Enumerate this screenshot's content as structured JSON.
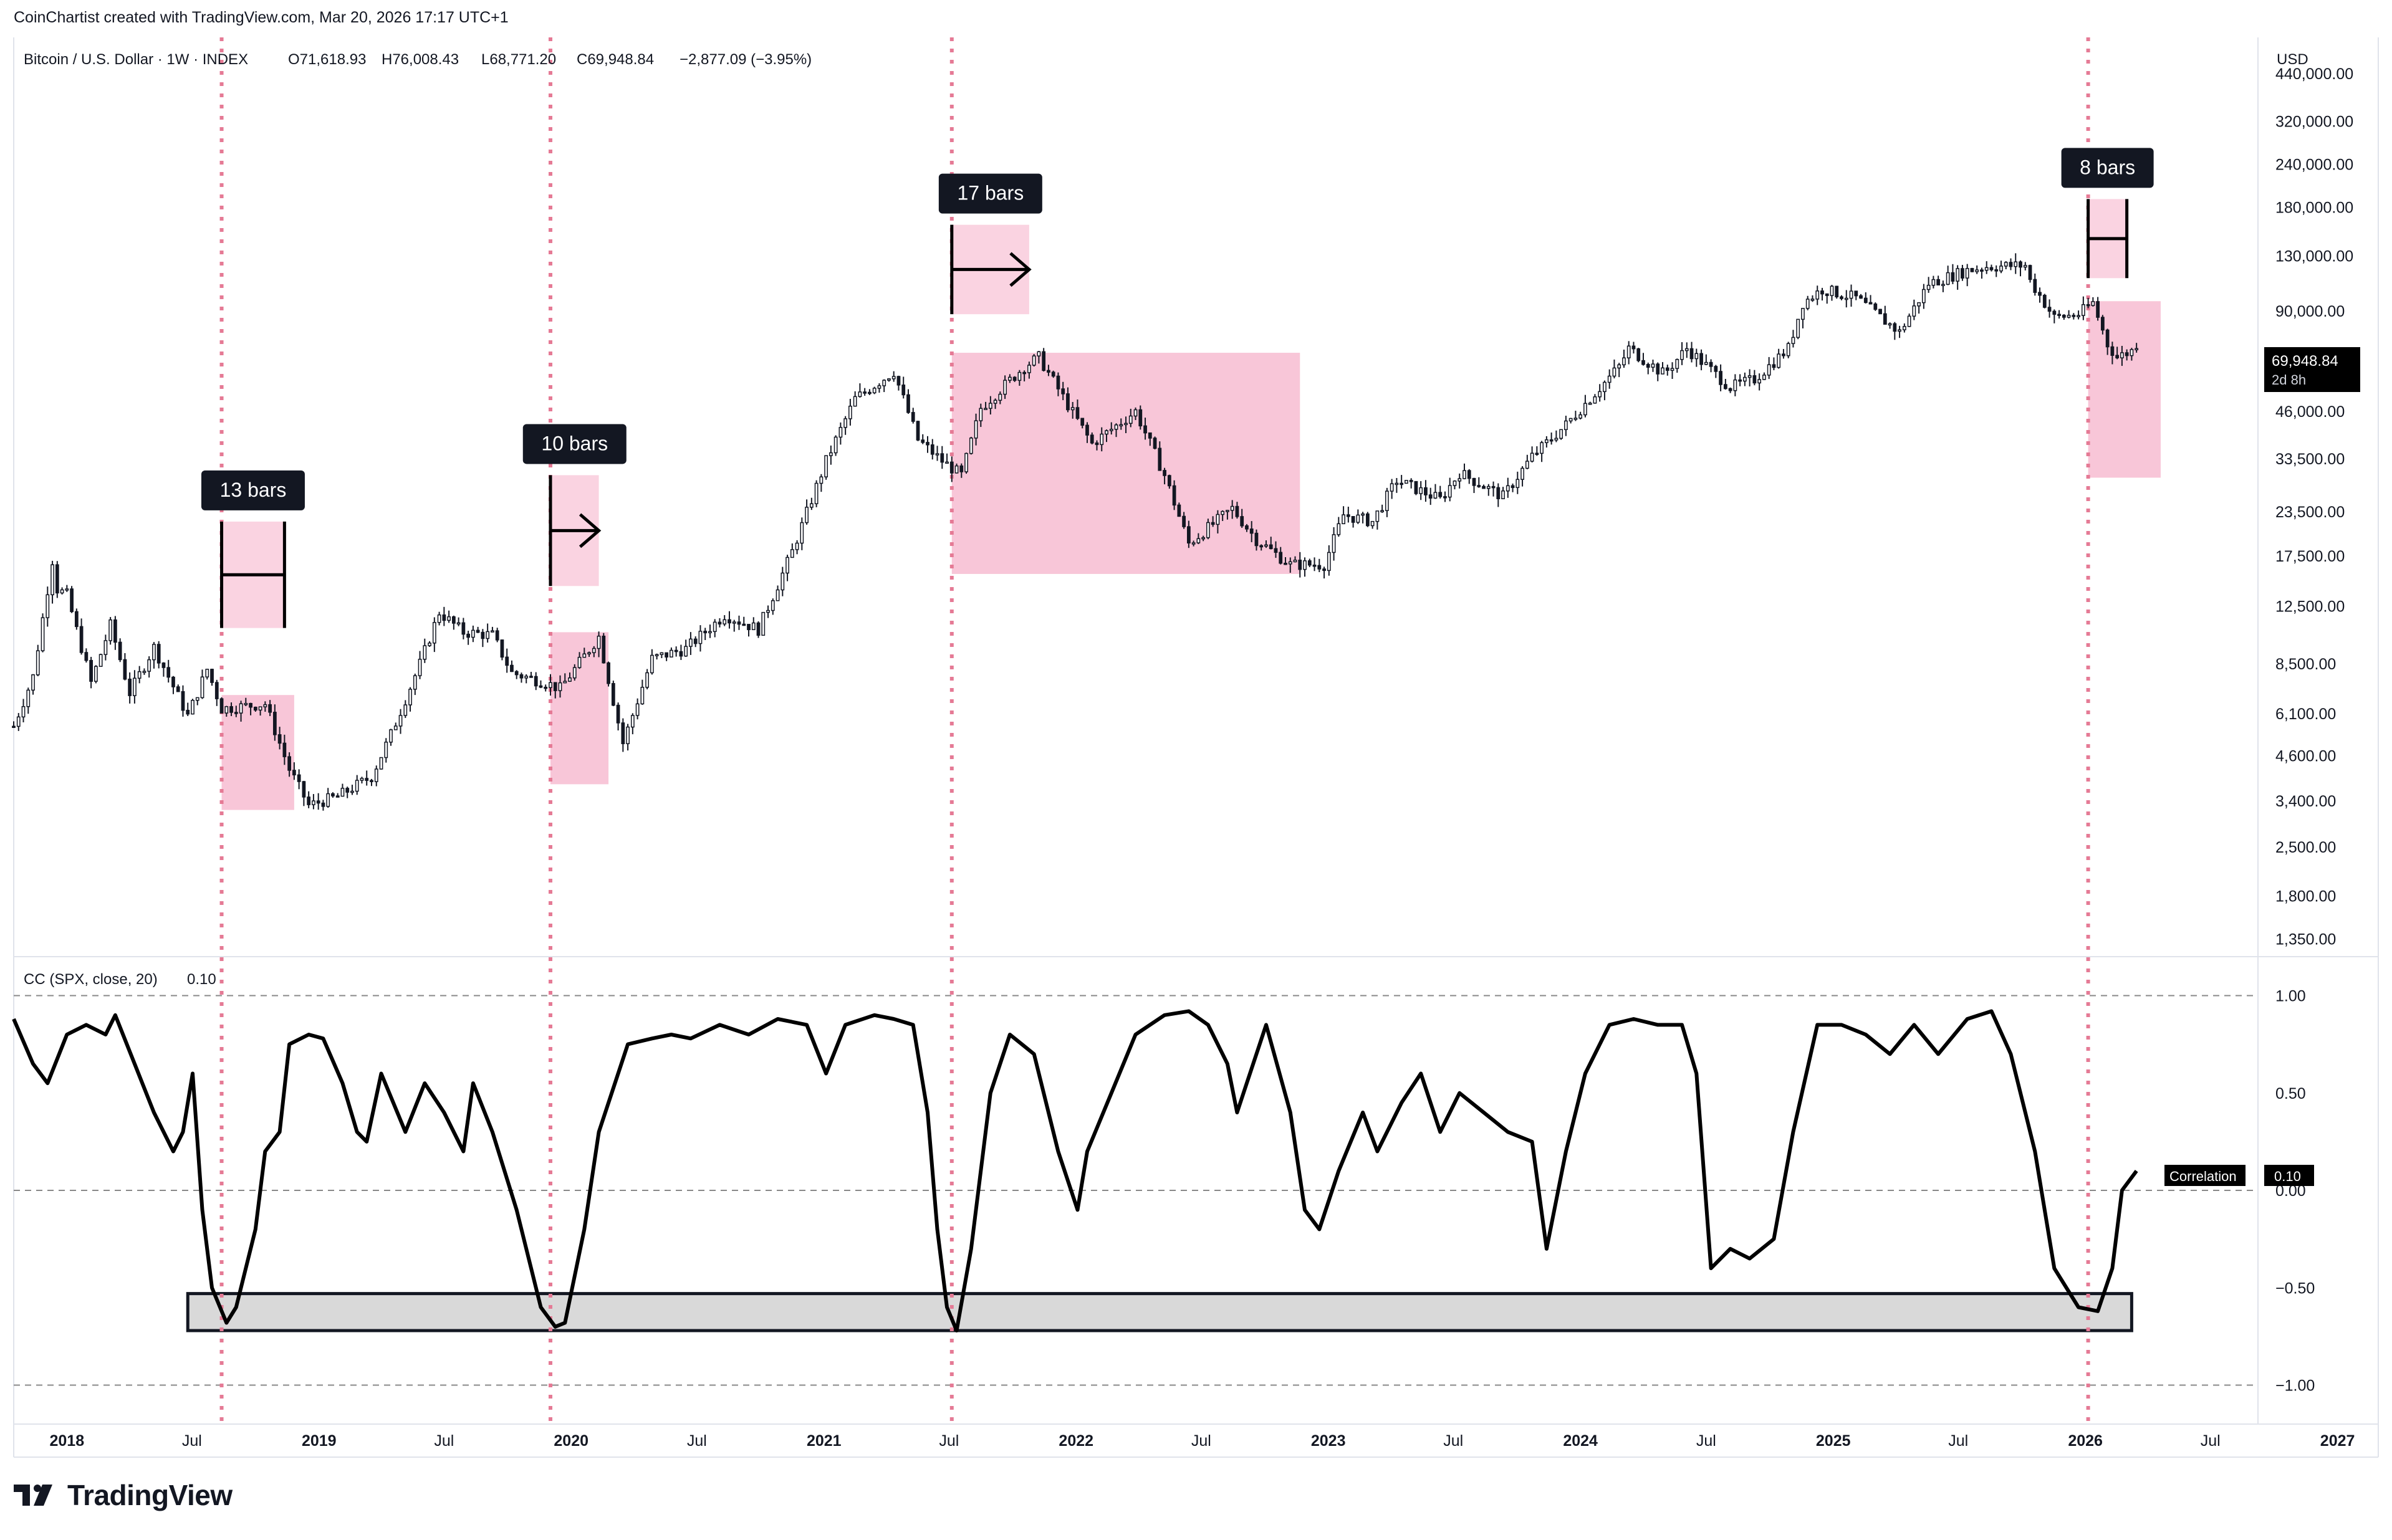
{
  "header": {
    "credit": "CoinChartist created with TradingView.com, Mar 20, 2026 17:17 UTC+1",
    "symbol": "Bitcoin / U.S. Dollar · 1W · INDEX",
    "ohlc": {
      "o": "O71,618.93",
      "h": "H76,008.43",
      "l": "L68,771.20",
      "c": "C69,948.84",
      "chg": "−2,877.09 (−3.95%)"
    }
  },
  "branding": {
    "name": "TradingView",
    "logo_icon": "tradingview-logo-icon"
  },
  "colors": {
    "accent_pink": "#f8c6d8",
    "marker_line": "#e57a95",
    "candle": "#131722",
    "price_badge": "#000000",
    "zone_gray": "#d9d9d9"
  },
  "chart_data": [
    {
      "type": "candlestick",
      "title": "Bitcoin / U.S. Dollar · 1W · INDEX",
      "currency_label": "USD",
      "y_scale": "log",
      "ylim": [
        1200,
        560000
      ],
      "y_ticks": [
        "440,000.00",
        "320,000.00",
        "240,000.00",
        "180,000.00",
        "130,000.00",
        "90,000.00",
        "46,000.00",
        "33,500.00",
        "23,500.00",
        "17,500.00",
        "12,500.00",
        "8,500.00",
        "6,100.00",
        "4,600.00",
        "3,400.00",
        "2,500.00",
        "1,800.00",
        "1,350.00"
      ],
      "x_range": [
        "2017-10-16",
        "2027-03-01"
      ],
      "x_ticks": [
        {
          "label": "2018",
          "date": "2018-01-01",
          "bold": true
        },
        {
          "label": "Jul",
          "date": "2018-07-01",
          "bold": false
        },
        {
          "label": "2019",
          "date": "2019-01-01",
          "bold": true
        },
        {
          "label": "Jul",
          "date": "2019-07-01",
          "bold": false
        },
        {
          "label": "2020",
          "date": "2020-01-01",
          "bold": true
        },
        {
          "label": "Jul",
          "date": "2020-07-01",
          "bold": false
        },
        {
          "label": "2021",
          "date": "2021-01-01",
          "bold": true
        },
        {
          "label": "Jul",
          "date": "2021-07-01",
          "bold": false
        },
        {
          "label": "2022",
          "date": "2022-01-01",
          "bold": true
        },
        {
          "label": "Jul",
          "date": "2022-07-01",
          "bold": false
        },
        {
          "label": "2023",
          "date": "2023-01-01",
          "bold": true
        },
        {
          "label": "Jul",
          "date": "2023-07-01",
          "bold": false
        },
        {
          "label": "2024",
          "date": "2024-01-01",
          "bold": true
        },
        {
          "label": "Jul",
          "date": "2024-07-01",
          "bold": false
        },
        {
          "label": "2025",
          "date": "2025-01-01",
          "bold": true
        },
        {
          "label": "Jul",
          "date": "2025-07-01",
          "bold": false
        },
        {
          "label": "2026",
          "date": "2026-01-01",
          "bold": true
        },
        {
          "label": "Jul",
          "date": "2026-07-01",
          "bold": false
        },
        {
          "label": "2027",
          "date": "2027-01-01",
          "bold": true
        }
      ],
      "price_path": [
        [
          "2017-10-16",
          5600
        ],
        [
          "2017-11-13",
          7800
        ],
        [
          "2017-12-11",
          17000
        ],
        [
          "2017-12-18",
          14000
        ],
        [
          "2018-01-01",
          13500
        ],
        [
          "2018-02-05",
          7500
        ],
        [
          "2018-03-05",
          11000
        ],
        [
          "2018-04-02",
          7000
        ],
        [
          "2018-05-07",
          9500
        ],
        [
          "2018-06-25",
          6000
        ],
        [
          "2018-07-23",
          8200
        ],
        [
          "2018-08-13",
          6300
        ],
        [
          "2018-10-15",
          6500
        ],
        [
          "2018-11-19",
          4200
        ],
        [
          "2018-12-17",
          3300
        ],
        [
          "2019-01-28",
          3500
        ],
        [
          "2019-03-18",
          4000
        ],
        [
          "2019-04-15",
          5300
        ],
        [
          "2019-05-27",
          8500
        ],
        [
          "2019-06-24",
          12000
        ],
        [
          "2019-07-29",
          10500
        ],
        [
          "2019-09-09",
          10300
        ],
        [
          "2019-10-07",
          8000
        ],
        [
          "2019-11-25",
          7500
        ],
        [
          "2019-12-16",
          7200
        ],
        [
          "2020-02-10",
          10200
        ],
        [
          "2020-03-16",
          5000
        ],
        [
          "2020-04-27",
          8800
        ],
        [
          "2020-06-15",
          9400
        ],
        [
          "2020-08-10",
          11800
        ],
        [
          "2020-09-28",
          10700
        ],
        [
          "2020-11-16",
          18000
        ],
        [
          "2021-01-04",
          33000
        ],
        [
          "2021-02-15",
          50000
        ],
        [
          "2021-04-12",
          60000
        ],
        [
          "2021-05-17",
          38000
        ],
        [
          "2021-06-21",
          33000
        ],
        [
          "2021-07-19",
          30000
        ],
        [
          "2021-08-16",
          47000
        ],
        [
          "2021-10-18",
          62000
        ],
        [
          "2021-11-08",
          66000
        ],
        [
          "2021-12-20",
          48000
        ],
        [
          "2022-01-24",
          37000
        ],
        [
          "2022-03-28",
          46000
        ],
        [
          "2022-05-09",
          30000
        ],
        [
          "2022-06-13",
          19000
        ],
        [
          "2022-08-15",
          24000
        ],
        [
          "2022-09-19",
          19500
        ],
        [
          "2022-11-07",
          16500
        ],
        [
          "2022-12-26",
          16500
        ],
        [
          "2023-01-23",
          23000
        ],
        [
          "2023-03-06",
          22000
        ],
        [
          "2023-04-10",
          29000
        ],
        [
          "2023-06-12",
          25500
        ],
        [
          "2023-07-10",
          30500
        ],
        [
          "2023-09-11",
          26000
        ],
        [
          "2023-10-23",
          34000
        ],
        [
          "2023-12-11",
          42000
        ],
        [
          "2024-02-26",
          62000
        ],
        [
          "2024-03-11",
          70000
        ],
        [
          "2024-05-01",
          59000
        ],
        [
          "2024-06-03",
          70000
        ],
        [
          "2024-08-05",
          54000
        ],
        [
          "2024-09-09",
          57000
        ],
        [
          "2024-10-28",
          70000
        ],
        [
          "2024-11-18",
          95000
        ],
        [
          "2024-12-16",
          104000
        ],
        [
          "2025-02-03",
          98000
        ],
        [
          "2025-04-07",
          78000
        ],
        [
          "2025-05-19",
          108000
        ],
        [
          "2025-07-14",
          118000
        ],
        [
          "2025-08-11",
          121000
        ],
        [
          "2025-10-06",
          122000
        ],
        [
          "2025-10-13",
          110000
        ],
        [
          "2025-11-17",
          86000
        ],
        [
          "2025-12-22",
          88000
        ],
        [
          "2026-01-12",
          95000
        ],
        [
          "2026-02-02",
          72000
        ],
        [
          "2026-02-16",
          66000
        ],
        [
          "2026-03-16",
          69948.84
        ]
      ],
      "last_price": "69,948.84",
      "countdown": "2d 8h",
      "shaded_zones": [
        {
          "start": "2018-08-13",
          "end": "2018-11-26",
          "low": 3200,
          "high": 6900
        },
        {
          "start": "2019-12-02",
          "end": "2020-02-24",
          "low": 3800,
          "high": 10500
        },
        {
          "start": "2021-07-05",
          "end": "2022-11-21",
          "low": 15500,
          "high": 68000
        },
        {
          "start": "2026-01-05",
          "end": "2026-04-20",
          "low": 29500,
          "high": 96000
        }
      ],
      "bar_counts": [
        {
          "label": "13 bars",
          "start": "2018-08-13",
          "end": "2018-11-12",
          "low": 10800,
          "high": 22000,
          "arrow": false
        },
        {
          "label": "10 bars",
          "start": "2019-12-02",
          "end": "2020-02-10",
          "low": 14300,
          "high": 30000,
          "arrow": true
        },
        {
          "label": "17 bars",
          "start": "2021-07-05",
          "end": "2021-10-25",
          "low": 88000,
          "high": 160000,
          "arrow": true
        },
        {
          "label": "8 bars",
          "start": "2026-01-05",
          "end": "2026-03-02",
          "low": 112000,
          "high": 190000,
          "arrow": false
        }
      ],
      "vertical_markers": [
        "2018-08-13",
        "2019-12-02",
        "2021-07-05",
        "2026-01-05"
      ]
    },
    {
      "type": "line",
      "title": "CC (SPX, close, 20)",
      "value_label": "0.10",
      "series": [
        {
          "name": "Correlation",
          "last": "0.10"
        }
      ],
      "ylim": [
        -1.2,
        1.2
      ],
      "y_ticks": [
        "1.00",
        "0.50",
        "0.00",
        "−0.50",
        "−1.00"
      ],
      "y_tick_values": [
        1,
        0.5,
        0,
        -0.5,
        -1
      ],
      "dashed_levels": [
        1,
        0,
        -1
      ],
      "zone": {
        "start": "2018-06-25",
        "end": "2026-03-09",
        "low": -0.72,
        "high": -0.53
      },
      "points": [
        [
          "2017-10-16",
          0.88
        ],
        [
          "2017-11-13",
          0.65
        ],
        [
          "2017-12-04",
          0.55
        ],
        [
          "2018-01-01",
          0.8
        ],
        [
          "2018-01-29",
          0.85
        ],
        [
          "2018-02-26",
          0.8
        ],
        [
          "2018-03-12",
          0.9
        ],
        [
          "2018-04-09",
          0.65
        ],
        [
          "2018-05-07",
          0.4
        ],
        [
          "2018-06-04",
          0.2
        ],
        [
          "2018-06-18",
          0.3
        ],
        [
          "2018-07-02",
          0.6
        ],
        [
          "2018-07-16",
          -0.1
        ],
        [
          "2018-07-30",
          -0.5
        ],
        [
          "2018-08-20",
          -0.68
        ],
        [
          "2018-09-03",
          -0.6
        ],
        [
          "2018-10-01",
          -0.2
        ],
        [
          "2018-10-15",
          0.2
        ],
        [
          "2018-11-05",
          0.3
        ],
        [
          "2018-11-19",
          0.75
        ],
        [
          "2018-12-17",
          0.8
        ],
        [
          "2019-01-07",
          0.78
        ],
        [
          "2019-02-04",
          0.55
        ],
        [
          "2019-02-25",
          0.3
        ],
        [
          "2019-03-11",
          0.25
        ],
        [
          "2019-04-01",
          0.6
        ],
        [
          "2019-05-06",
          0.3
        ],
        [
          "2019-06-03",
          0.55
        ],
        [
          "2019-07-01",
          0.4
        ],
        [
          "2019-07-29",
          0.2
        ],
        [
          "2019-08-12",
          0.55
        ],
        [
          "2019-09-09",
          0.3
        ],
        [
          "2019-10-14",
          -0.1
        ],
        [
          "2019-11-18",
          -0.6
        ],
        [
          "2019-12-09",
          -0.7
        ],
        [
          "2019-12-23",
          -0.68
        ],
        [
          "2020-01-20",
          -0.2
        ],
        [
          "2020-02-10",
          0.3
        ],
        [
          "2020-03-09",
          0.6
        ],
        [
          "2020-03-23",
          0.75
        ],
        [
          "2020-04-27",
          0.78
        ],
        [
          "2020-05-25",
          0.8
        ],
        [
          "2020-06-22",
          0.78
        ],
        [
          "2020-08-03",
          0.85
        ],
        [
          "2020-09-14",
          0.8
        ],
        [
          "2020-10-26",
          0.88
        ],
        [
          "2020-12-07",
          0.85
        ],
        [
          "2021-01-04",
          0.6
        ],
        [
          "2021-02-01",
          0.85
        ],
        [
          "2021-03-15",
          0.9
        ],
        [
          "2021-04-12",
          0.88
        ],
        [
          "2021-05-10",
          0.85
        ],
        [
          "2021-05-31",
          0.4
        ],
        [
          "2021-06-14",
          -0.2
        ],
        [
          "2021-06-28",
          -0.6
        ],
        [
          "2021-07-12",
          -0.72
        ],
        [
          "2021-08-02",
          -0.3
        ],
        [
          "2021-08-30",
          0.5
        ],
        [
          "2021-09-27",
          0.8
        ],
        [
          "2021-11-01",
          0.7
        ],
        [
          "2021-12-06",
          0.2
        ],
        [
          "2022-01-03",
          -0.1
        ],
        [
          "2022-01-17",
          0.2
        ],
        [
          "2022-02-21",
          0.5
        ],
        [
          "2022-03-28",
          0.8
        ],
        [
          "2022-05-09",
          0.9
        ],
        [
          "2022-06-13",
          0.92
        ],
        [
          "2022-07-11",
          0.85
        ],
        [
          "2022-08-08",
          0.65
        ],
        [
          "2022-08-22",
          0.4
        ],
        [
          "2022-09-05",
          0.55
        ],
        [
          "2022-10-03",
          0.85
        ],
        [
          "2022-11-07",
          0.4
        ],
        [
          "2022-11-28",
          -0.1
        ],
        [
          "2022-12-19",
          -0.2
        ],
        [
          "2023-01-16",
          0.1
        ],
        [
          "2023-02-20",
          0.4
        ],
        [
          "2023-03-13",
          0.2
        ],
        [
          "2023-04-17",
          0.45
        ],
        [
          "2023-05-15",
          0.6
        ],
        [
          "2023-06-12",
          0.3
        ],
        [
          "2023-07-10",
          0.5
        ],
        [
          "2023-08-14",
          0.4
        ],
        [
          "2023-09-18",
          0.3
        ],
        [
          "2023-10-23",
          0.25
        ],
        [
          "2023-11-13",
          -0.3
        ],
        [
          "2023-12-11",
          0.2
        ],
        [
          "2024-01-08",
          0.6
        ],
        [
          "2024-02-12",
          0.85
        ],
        [
          "2024-03-18",
          0.88
        ],
        [
          "2024-04-22",
          0.85
        ],
        [
          "2024-05-27",
          0.85
        ],
        [
          "2024-06-17",
          0.6
        ],
        [
          "2024-07-08",
          -0.4
        ],
        [
          "2024-08-05",
          -0.3
        ],
        [
          "2024-09-02",
          -0.35
        ],
        [
          "2024-10-07",
          -0.25
        ],
        [
          "2024-11-04",
          0.3
        ],
        [
          "2024-12-09",
          0.85
        ],
        [
          "2025-01-13",
          0.85
        ],
        [
          "2025-02-17",
          0.8
        ],
        [
          "2025-03-24",
          0.7
        ],
        [
          "2025-04-28",
          0.85
        ],
        [
          "2025-06-02",
          0.7
        ],
        [
          "2025-07-14",
          0.88
        ],
        [
          "2025-08-18",
          0.92
        ],
        [
          "2025-09-15",
          0.7
        ],
        [
          "2025-10-20",
          0.2
        ],
        [
          "2025-11-17",
          -0.4
        ],
        [
          "2025-12-22",
          -0.6
        ],
        [
          "2026-01-19",
          -0.62
        ],
        [
          "2026-02-09",
          -0.4
        ],
        [
          "2026-02-23",
          0.0
        ],
        [
          "2026-03-16",
          0.1
        ]
      ]
    }
  ]
}
